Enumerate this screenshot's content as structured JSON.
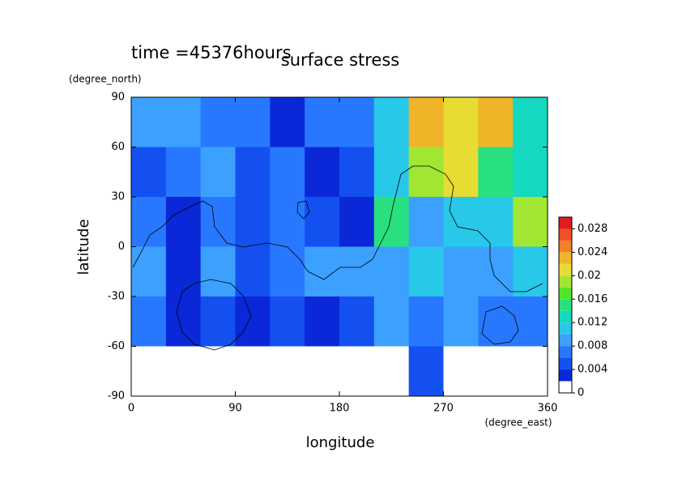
{
  "chart_data": {
    "type": "heatmap",
    "title": "surface stress",
    "subtitle": "time =45376hours",
    "x_label": "longitude",
    "y_label": "latitude",
    "x_unit": "(degree_east)",
    "y_unit": "(degree_north)",
    "xlim": [
      0,
      360
    ],
    "ylim": [
      -90,
      90
    ],
    "xticks": [
      0,
      90,
      180,
      270,
      360
    ],
    "yticks": [
      -90,
      -60,
      -30,
      0,
      30,
      60,
      90
    ],
    "x": [
      15,
      45,
      75,
      105,
      135,
      165,
      195,
      225,
      255,
      285,
      315,
      345
    ],
    "y": [
      75,
      45,
      15,
      -15,
      -45,
      -75
    ],
    "z": [
      [
        0.008,
        0.008,
        0.006,
        0.006,
        0.002,
        0.006,
        0.006,
        0.01,
        0.022,
        0.02,
        0.022,
        0.012
      ],
      [
        0.004,
        0.006,
        0.008,
        0.004,
        0.006,
        0.002,
        0.004,
        0.01,
        0.018,
        0.02,
        0.014,
        0.012
      ],
      [
        0.006,
        0.002,
        0.006,
        0.004,
        0.006,
        0.004,
        0.002,
        0.014,
        0.008,
        0.01,
        0.01,
        0.018
      ],
      [
        0.008,
        0.002,
        0.008,
        0.004,
        0.006,
        0.008,
        0.008,
        0.008,
        0.01,
        0.008,
        0.008,
        0.01
      ],
      [
        0.006,
        0.002,
        0.004,
        0.002,
        0.004,
        0.002,
        0.004,
        0.008,
        0.006,
        0.008,
        0.006,
        0.006
      ],
      [
        0,
        0,
        0,
        0,
        0,
        0,
        0,
        0,
        0.004,
        0,
        0,
        0
      ]
    ],
    "color_levels": [
      0,
      0.002,
      0.004,
      0.006,
      0.008,
      0.01,
      0.012,
      0.014,
      0.016,
      0.018,
      0.02,
      0.022,
      0.024,
      0.026,
      0.028,
      0.03
    ],
    "colors": [
      "#ffffff",
      "#0a28d8",
      "#1450f0",
      "#2878ff",
      "#3ca0ff",
      "#28c8e8",
      "#14d8c0",
      "#28e080",
      "#50e628",
      "#a0e632",
      "#e6dc32",
      "#f0b428",
      "#f08228",
      "#f05028",
      "#dc1e1e"
    ],
    "colorbar_ticks": [
      0,
      0.004,
      0.008,
      0.012,
      0.016,
      0.02,
      0.024,
      0.028
    ]
  }
}
